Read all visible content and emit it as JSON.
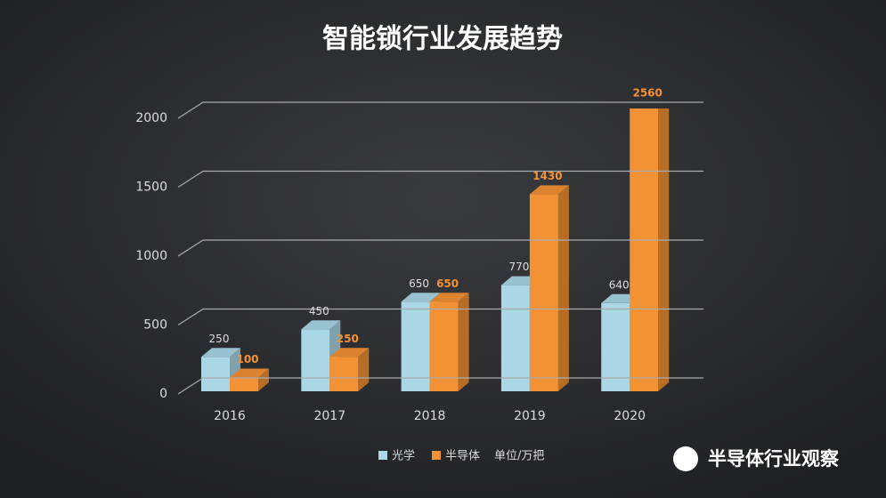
{
  "chart_data": {
    "type": "bar3d",
    "title": "智能锁行业发展趋势",
    "categories": [
      "2016",
      "2017",
      "2018",
      "2019",
      "2020"
    ],
    "series": [
      {
        "name": "光学",
        "color": "#a9d7e6",
        "values": [
          250,
          450,
          650,
          770,
          640
        ]
      },
      {
        "name": "半导体",
        "color": "#f39234",
        "values": [
          100,
          250,
          650,
          1430,
          2560
        ]
      }
    ],
    "ylim": [
      0,
      2000
    ],
    "yticks": [
      0,
      500,
      1000,
      1500,
      2000
    ],
    "grid": true,
    "unit": "单位/万把",
    "watermark": "半导体行业观察"
  }
}
